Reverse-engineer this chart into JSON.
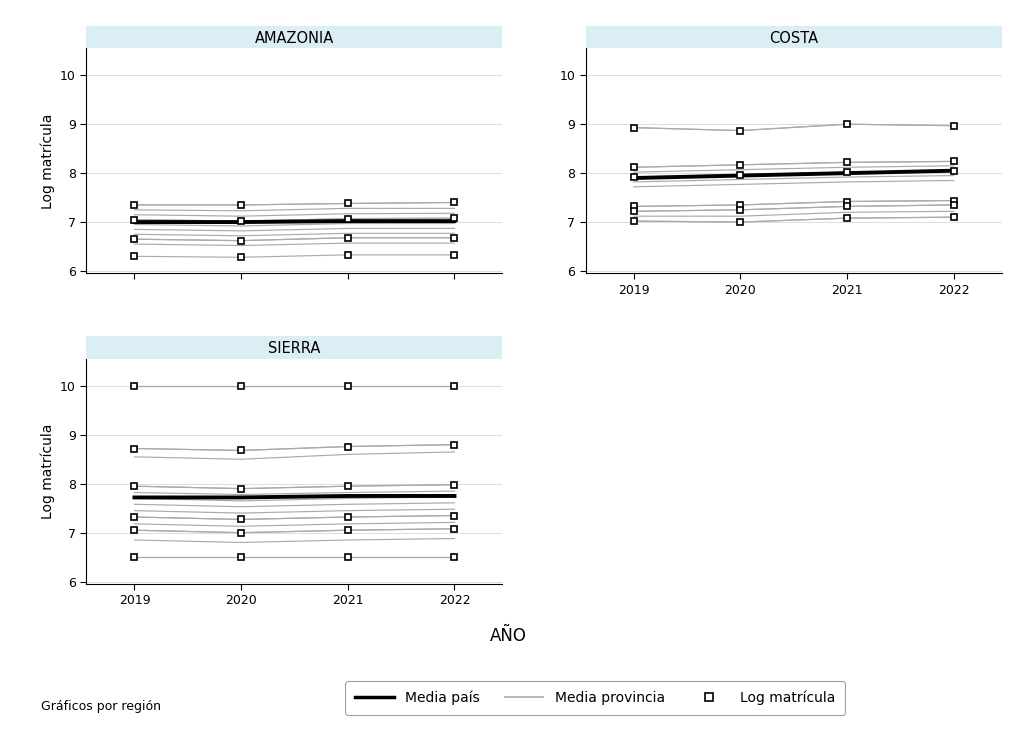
{
  "years": [
    2019,
    2020,
    2021,
    2022
  ],
  "ylim": [
    5.95,
    10.55
  ],
  "yticks": [
    6,
    7,
    8,
    9,
    10
  ],
  "xlim": [
    2018.55,
    2022.45
  ],
  "xticks": [
    2019,
    2020,
    2021,
    2022
  ],
  "amazonia": {
    "media_pais": [
      7.0,
      7.0,
      7.02,
      7.02
    ],
    "provincia_lines": [
      [
        7.35,
        7.35,
        7.38,
        7.4
      ],
      [
        7.25,
        7.23,
        7.28,
        7.28
      ],
      [
        7.15,
        7.12,
        7.17,
        7.18
      ],
      [
        7.05,
        7.02,
        7.07,
        7.08
      ],
      [
        6.95,
        6.92,
        6.97,
        6.97
      ],
      [
        6.85,
        6.82,
        6.87,
        6.87
      ],
      [
        6.75,
        6.72,
        6.77,
        6.77
      ],
      [
        6.65,
        6.62,
        6.68,
        6.68
      ],
      [
        6.55,
        6.52,
        6.57,
        6.57
      ]
    ],
    "log_matricula_lines": [
      [
        7.35,
        7.35,
        7.38,
        7.4
      ],
      [
        7.05,
        7.02,
        7.07,
        7.08
      ],
      [
        6.65,
        6.62,
        6.68,
        6.68
      ],
      [
        6.3,
        6.28,
        6.33,
        6.33
      ]
    ]
  },
  "costa": {
    "media_pais": [
      7.9,
      7.95,
      8.0,
      8.05
    ],
    "provincia_lines": [
      [
        8.93,
        8.87,
        9.0,
        8.97
      ],
      [
        8.12,
        8.17,
        8.22,
        8.24
      ],
      [
        8.02,
        8.07,
        8.12,
        8.15
      ],
      [
        7.92,
        7.97,
        8.02,
        8.05
      ],
      [
        7.82,
        7.87,
        7.92,
        7.95
      ],
      [
        7.72,
        7.77,
        7.82,
        7.85
      ],
      [
        7.32,
        7.35,
        7.42,
        7.44
      ],
      [
        7.22,
        7.25,
        7.32,
        7.35
      ],
      [
        7.12,
        7.12,
        7.2,
        7.22
      ],
      [
        7.02,
        7.0,
        7.08,
        7.1
      ]
    ],
    "log_matricula_lines": [
      [
        8.93,
        8.87,
        9.0,
        8.97
      ],
      [
        8.12,
        8.17,
        8.22,
        8.24
      ],
      [
        7.92,
        7.97,
        8.02,
        8.05
      ],
      [
        7.32,
        7.35,
        7.42,
        7.44
      ],
      [
        7.22,
        7.25,
        7.32,
        7.35
      ],
      [
        7.02,
        7.0,
        7.08,
        7.1
      ]
    ]
  },
  "sierra": {
    "media_pais": [
      7.72,
      7.72,
      7.75,
      7.75
    ],
    "provincia_lines": [
      [
        10.0,
        10.0,
        10.0,
        10.0
      ],
      [
        8.72,
        8.68,
        8.76,
        8.8
      ],
      [
        8.55,
        8.5,
        8.6,
        8.65
      ],
      [
        7.95,
        7.9,
        7.95,
        7.98
      ],
      [
        7.82,
        7.78,
        7.82,
        7.85
      ],
      [
        7.7,
        7.65,
        7.7,
        7.73
      ],
      [
        7.58,
        7.53,
        7.58,
        7.61
      ],
      [
        7.45,
        7.4,
        7.45,
        7.48
      ],
      [
        7.32,
        7.27,
        7.32,
        7.35
      ],
      [
        7.18,
        7.13,
        7.18,
        7.21
      ],
      [
        7.05,
        7.0,
        7.05,
        7.08
      ],
      [
        6.85,
        6.8,
        6.85,
        6.88
      ],
      [
        6.5,
        6.5,
        6.5,
        6.5
      ]
    ],
    "log_matricula_lines": [
      [
        10.0,
        10.0,
        10.0,
        10.0
      ],
      [
        8.72,
        8.68,
        8.76,
        8.8
      ],
      [
        7.95,
        7.9,
        7.95,
        7.98
      ],
      [
        7.32,
        7.27,
        7.32,
        7.35
      ],
      [
        7.05,
        7.0,
        7.05,
        7.08
      ],
      [
        6.5,
        6.5,
        6.5,
        6.5
      ]
    ]
  },
  "color_pais": "#000000",
  "color_provincia": "#aaaaaa",
  "header_bg": "#daeef3",
  "bg_color": "#ffffff",
  "ylabel": "Log matrícula",
  "xlabel": "AÑO",
  "legend_label_pais": "Media país",
  "legend_label_provincia": "Media provincia",
  "legend_label_log": "Log matrícula",
  "graficos_label": "Gráficos por región"
}
